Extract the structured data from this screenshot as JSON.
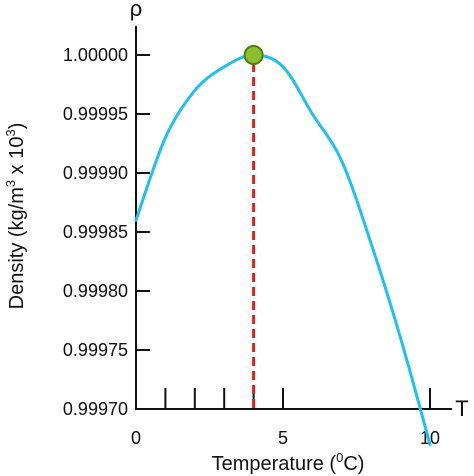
{
  "chart_data": {
    "type": "line",
    "title": "",
    "x_axis_symbol": "T",
    "y_axis_symbol": "ρ",
    "xlabel": {
      "main": "Temperature (",
      "superscript": "0",
      "tail": "C)"
    },
    "ylabel": {
      "main": "Density (kg/m",
      "superscript_1": "3",
      "middle": " x 10",
      "superscript_2": "3",
      "tail": ")"
    },
    "xlim": [
      0,
      10.2
    ],
    "ylim": [
      0.9997,
      1.000015
    ],
    "x_ticks": [
      {
        "value": 0,
        "label": "0"
      },
      {
        "value": 5,
        "label": "5"
      },
      {
        "value": 10,
        "label": "10"
      }
    ],
    "x_minor_ticks": [
      1,
      2,
      3,
      4,
      5,
      10
    ],
    "y_ticks": [
      {
        "value": 1.0,
        "label": "1.00000"
      },
      {
        "value": 0.99995,
        "label": "0.99995"
      },
      {
        "value": 0.9999,
        "label": "0.99990"
      },
      {
        "value": 0.99985,
        "label": "0.99985"
      },
      {
        "value": 0.9998,
        "label": "0.99980"
      },
      {
        "value": 0.99975,
        "label": "0.99975"
      },
      {
        "value": 0.9997,
        "label": "0.99970"
      }
    ],
    "series": [
      {
        "x": [
          0,
          1,
          2,
          3,
          4,
          5,
          6,
          7,
          8,
          9,
          10
        ],
        "values": [
          0.99986,
          0.99993,
          0.99997,
          0.99999,
          1.0,
          0.99999,
          0.99995,
          0.99991,
          0.99984,
          0.99976,
          0.99967
        ],
        "color": "#1ec0ef"
      }
    ],
    "max_point": {
      "x": 4,
      "y": 1.0,
      "color": "#8cbf2c",
      "outline": "#4f7d10"
    },
    "max_dropline_color": "#e02020"
  }
}
